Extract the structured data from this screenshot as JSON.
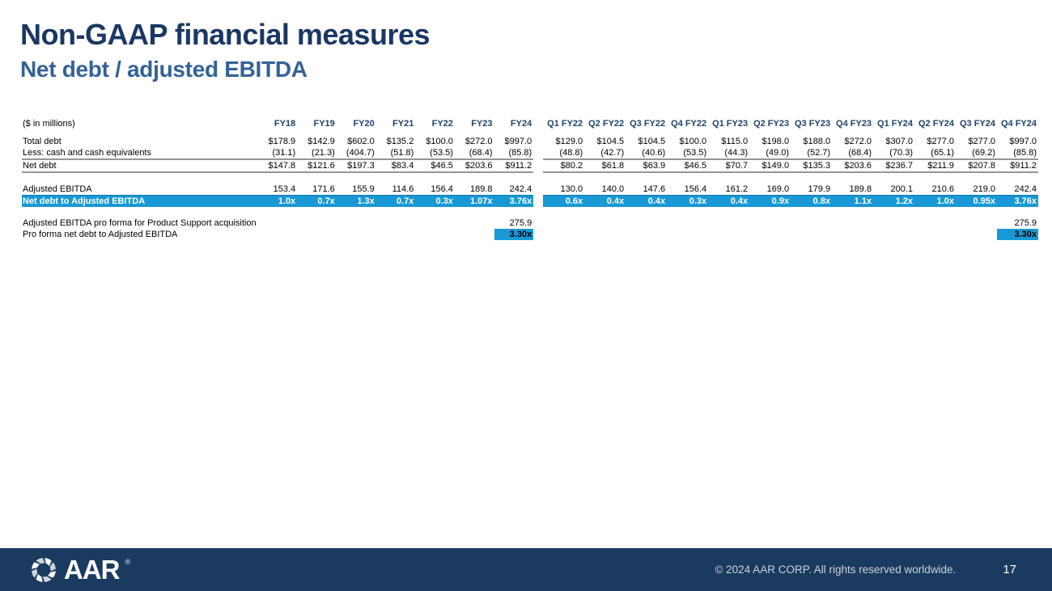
{
  "slide": {
    "title": "Non-GAAP financial measures",
    "subtitle": "Net debt / adjusted EBITDA"
  },
  "colors": {
    "highlight_blue": "#1899D6",
    "title_navy": "#1B3763",
    "subtitle_blue": "#346296",
    "header_text_navy": "#1F4268",
    "footer_navy": "#1B3A5F",
    "rule_gray": "#969696"
  },
  "annual_table": {
    "header_label": "($ in millions)",
    "columns": [
      "FY18",
      "FY19",
      "FY20",
      "FY21",
      "FY22",
      "FY23",
      "FY24"
    ],
    "rows": [
      {
        "label": "Total debt",
        "values": [
          "$178.9",
          "$142.9",
          "$602.0",
          "$135.2",
          "$100.0",
          "$272.0",
          "$997.0"
        ]
      },
      {
        "label": "Less: cash and cash equivalents",
        "values": [
          "(31.1)",
          "(21.3)",
          "(404.7)",
          "(51.8)",
          "(53.5)",
          "(68.4)",
          "(85.8)"
        ]
      },
      {
        "label": "Net debt",
        "values": [
          "$147.8",
          "$121.6",
          "$197.3",
          "$83.4",
          "$46.5",
          "$203.6",
          "$911.2"
        ],
        "cls": "rule-row"
      },
      {
        "spacer": 14
      },
      {
        "label": "Adjusted EBITDA",
        "values": [
          "153.4",
          "171.6",
          "155.9",
          "114.6",
          "156.4",
          "189.8",
          "242.4"
        ]
      },
      {
        "label": "Net debt to Adjusted EBITDA",
        "values": [
          "1.0x",
          "0.7x",
          "1.3x",
          "0.7x",
          "0.3x",
          "1.07x",
          "3.76x"
        ],
        "cls": "highlight"
      },
      {
        "spacer": 13
      },
      {
        "label": "Adjusted EBITDA pro forma for Product Support acquisition",
        "values": [
          "",
          "",
          "",
          "",
          "",
          "",
          "275.9"
        ]
      },
      {
        "label": "Pro forma net debt to Adjusted EBITDA",
        "values": [
          "",
          "",
          "",
          "",
          "",
          "",
          "3.30x"
        ],
        "hl": [
          6
        ]
      }
    ]
  },
  "quarterly_table": {
    "columns": [
      "Q1 FY22",
      "Q2 FY22",
      "Q3 FY22",
      "Q4 FY22",
      "Q1 FY23",
      "Q2 FY23",
      "Q3 FY23",
      "Q4 FY23",
      "Q1 FY24",
      "Q2 FY24",
      "Q3 FY24",
      "Q4 FY24"
    ],
    "rows": [
      {
        "values": [
          "$129.0",
          "$104.5",
          "$104.5",
          "$100.0",
          "$115.0",
          "$198.0",
          "$188.0",
          "$272.0",
          "$307.0",
          "$277.0",
          "$277.0",
          "$997.0"
        ]
      },
      {
        "values": [
          "(48.8)",
          "(42.7)",
          "(40.6)",
          "(53.5)",
          "(44.3)",
          "(49.0)",
          "(52.7)",
          "(68.4)",
          "(70.3)",
          "(65.1)",
          "(69.2)",
          "(85.8)"
        ]
      },
      {
        "values": [
          "$80.2",
          "$61.8",
          "$63.9",
          "$46.5",
          "$70.7",
          "$149.0",
          "$135.3",
          "$203.6",
          "$236.7",
          "$211.9",
          "$207.8",
          "$911.2"
        ],
        "cls": "rule-row"
      },
      {
        "spacer": 14
      },
      {
        "values": [
          "130.0",
          "140.0",
          "147.6",
          "156.4",
          "161.2",
          "169.0",
          "179.9",
          "189.8",
          "200.1",
          "210.6",
          "219.0",
          "242.4"
        ]
      },
      {
        "values": [
          "0.6x",
          "0.4x",
          "0.4x",
          "0.3x",
          "0.4x",
          "0.9x",
          "0.8x",
          "1.1x",
          "1.2x",
          "1.0x",
          "0.95x",
          "3.76x"
        ],
        "cls": "highlight"
      },
      {
        "spacer": 13
      },
      {
        "values": [
          "",
          "",
          "",
          "",
          "",
          "",
          "",
          "",
          "",
          "",
          "",
          "275.9"
        ]
      },
      {
        "values": [
          "",
          "",
          "",
          "",
          "",
          "",
          "",
          "",
          "",
          "",
          "",
          "3.30x"
        ],
        "hl": [
          11
        ]
      }
    ]
  },
  "footer": {
    "logo_text": "AAR",
    "logo_reg": "®",
    "copyright": "© 2024 AAR CORP. All rights reserved worldwide.",
    "page_number": "17"
  }
}
